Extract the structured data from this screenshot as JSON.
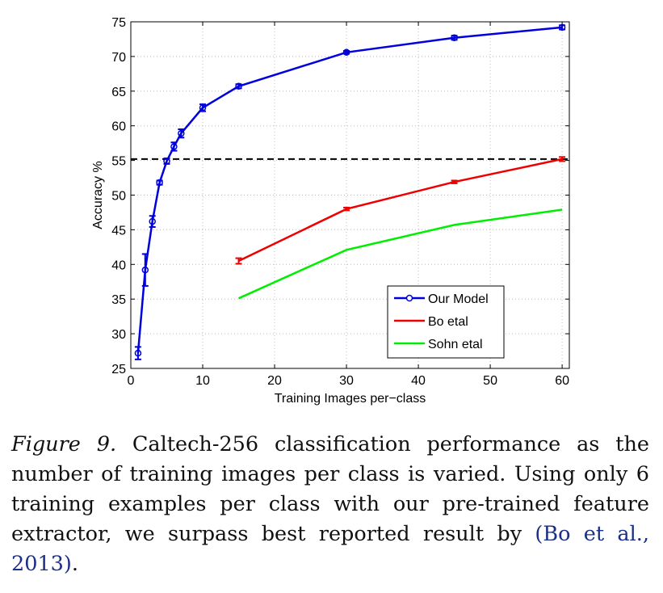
{
  "chart_data": {
    "type": "line",
    "xlabel": "Training Images per−class",
    "ylabel": "Accuracy %",
    "xlim": [
      0,
      61
    ],
    "ylim": [
      25,
      75
    ],
    "xticks": [
      0,
      10,
      20,
      30,
      40,
      50,
      60
    ],
    "yticks": [
      25,
      30,
      35,
      40,
      45,
      50,
      55,
      60,
      65,
      70,
      75
    ],
    "grid": true,
    "legend_position": "bottom-right",
    "reference_line": {
      "y": 55.2,
      "style": "dashed",
      "color": "#000000"
    },
    "series": [
      {
        "name": "Our Model",
        "color": "#0000dd",
        "marker": "circle",
        "points": [
          {
            "x": 1,
            "y": 27.2,
            "err": 0.9
          },
          {
            "x": 2,
            "y": 39.2,
            "err": 2.3
          },
          {
            "x": 3,
            "y": 46.2,
            "err": 0.8
          },
          {
            "x": 4,
            "y": 51.8,
            "err": 0.3
          },
          {
            "x": 5,
            "y": 54.9,
            "err": 0.4
          },
          {
            "x": 6,
            "y": 57.0,
            "err": 0.6
          },
          {
            "x": 7,
            "y": 58.9,
            "err": 0.6
          },
          {
            "x": 10,
            "y": 62.6,
            "err": 0.5
          },
          {
            "x": 15,
            "y": 65.7,
            "err": 0.3
          },
          {
            "x": 30,
            "y": 70.6,
            "err": 0.2
          },
          {
            "x": 45,
            "y": 72.7,
            "err": 0.3
          },
          {
            "x": 60,
            "y": 74.2,
            "err": 0.3
          }
        ]
      },
      {
        "name": "Bo etal",
        "color": "#ee0000",
        "marker": "none",
        "points": [
          {
            "x": 15,
            "y": 40.5,
            "err": 0.4
          },
          {
            "x": 30,
            "y": 48.0,
            "err": 0.2
          },
          {
            "x": 45,
            "y": 51.9,
            "err": 0.2
          },
          {
            "x": 60,
            "y": 55.2,
            "err": 0.3
          }
        ]
      },
      {
        "name": "Sohn etal",
        "color": "#00ee00",
        "marker": "none",
        "points": [
          {
            "x": 15,
            "y": 35.1
          },
          {
            "x": 30,
            "y": 42.1
          },
          {
            "x": 45,
            "y": 45.7
          },
          {
            "x": 60,
            "y": 47.9
          }
        ]
      }
    ]
  },
  "caption": {
    "label": "Figure 9.",
    "text": "Caltech-256 classification performance as the number of training images per class is varied. Using only 6 training examples per class with our pre-trained feature extractor, we surpass best reported result by ",
    "citation": "(Bo et al., 2013)",
    "end": "."
  }
}
